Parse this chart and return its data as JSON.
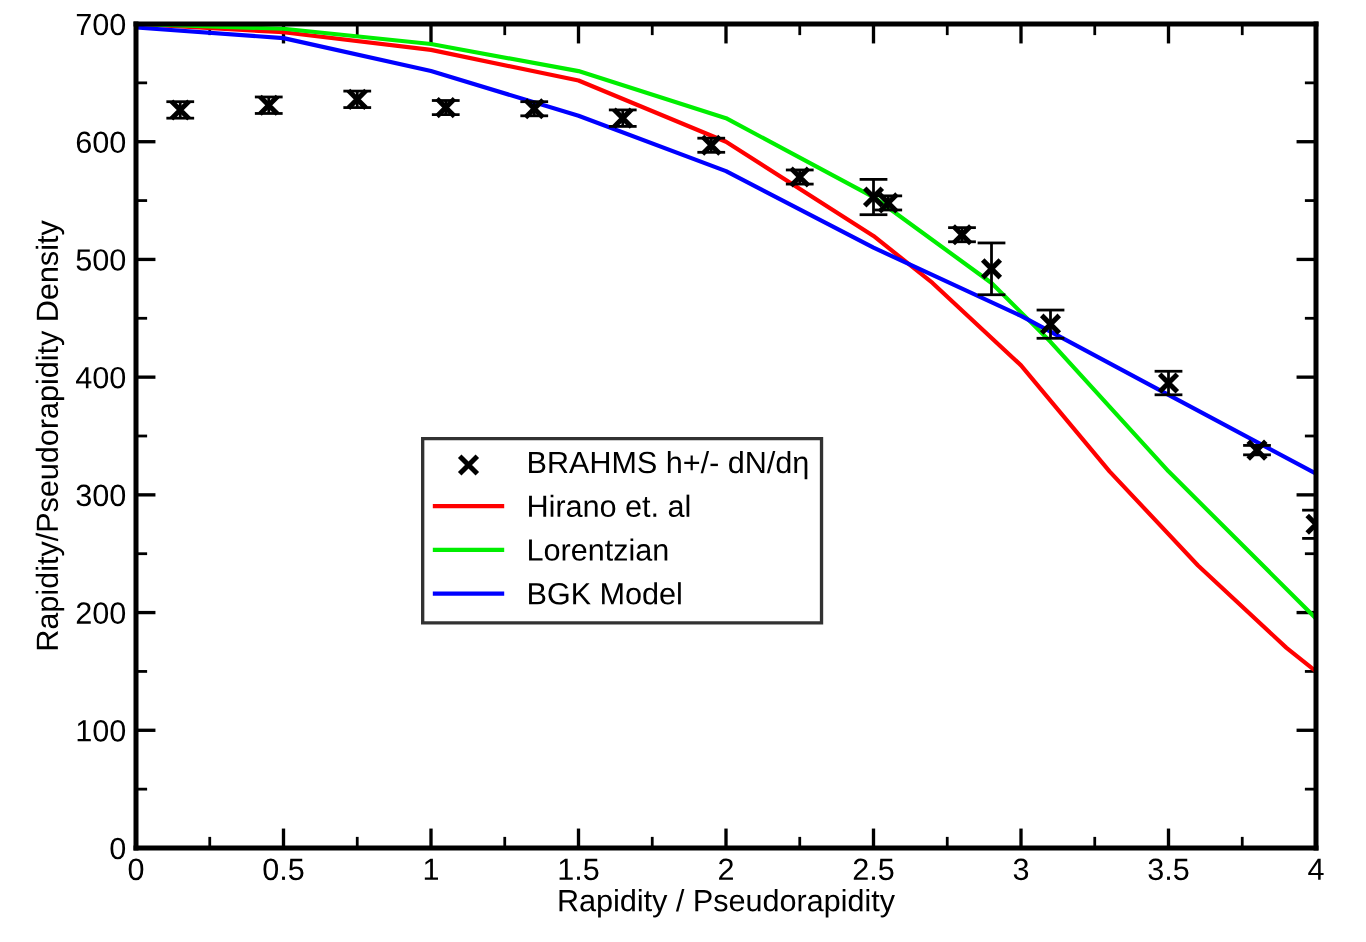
{
  "chart_data": {
    "type": "line",
    "xlabel": "Rapidity / Pseudorapidity",
    "ylabel": "Rapidity/Pseudorapidity Density",
    "xlim": [
      0,
      4
    ],
    "ylim": [
      0,
      700
    ],
    "xticks": [
      0,
      0.5,
      1,
      1.5,
      2,
      2.5,
      3,
      3.5,
      4
    ],
    "yticks": [
      0,
      100,
      200,
      300,
      400,
      500,
      600,
      700
    ],
    "grid": false,
    "legend": "center left",
    "series": [
      {
        "name": "BRAHMS h+/- dN/dη",
        "type": "scatter",
        "marker": "cross",
        "color": "#000000",
        "x": [
          0.15,
          0.45,
          0.75,
          1.05,
          1.35,
          1.65,
          1.95,
          2.25,
          2.5,
          2.55,
          2.8,
          2.9,
          3.1,
          3.5,
          3.8,
          4.0
        ],
        "values": [
          627,
          631,
          636,
          629,
          628,
          620,
          597,
          570,
          553,
          548,
          521,
          492,
          445,
          395,
          338,
          275
        ],
        "errors": [
          7,
          7,
          7,
          6,
          6,
          7,
          6,
          6,
          15,
          6,
          6,
          22,
          12,
          10,
          4,
          12
        ]
      },
      {
        "name": "Hirano et. al",
        "color": "#ff0000",
        "marker": "none",
        "x": [
          0,
          0.5,
          1,
          1.5,
          2,
          2.5,
          2.7,
          3,
          3.3,
          3.6,
          3.9,
          4.0
        ],
        "values": [
          700,
          693,
          678,
          652,
          600,
          520,
          480,
          410,
          320,
          240,
          170,
          150
        ]
      },
      {
        "name": "Lorentzian",
        "color": "#00ee00",
        "marker": "none",
        "x": [
          0,
          0.5,
          1,
          1.5,
          2,
          2.5,
          2.9,
          3,
          3.1,
          3.5,
          4
        ],
        "values": [
          700,
          696,
          683,
          660,
          620,
          553,
          480,
          455,
          430,
          320,
          195
        ]
      },
      {
        "name": "BGK Model",
        "color": "#0000ff",
        "marker": "none",
        "x": [
          0,
          0.5,
          1,
          1.5,
          2,
          2.5,
          3,
          3.5,
          4
        ],
        "values": [
          697,
          688,
          660,
          622,
          575,
          510,
          452,
          385,
          318
        ]
      }
    ]
  }
}
